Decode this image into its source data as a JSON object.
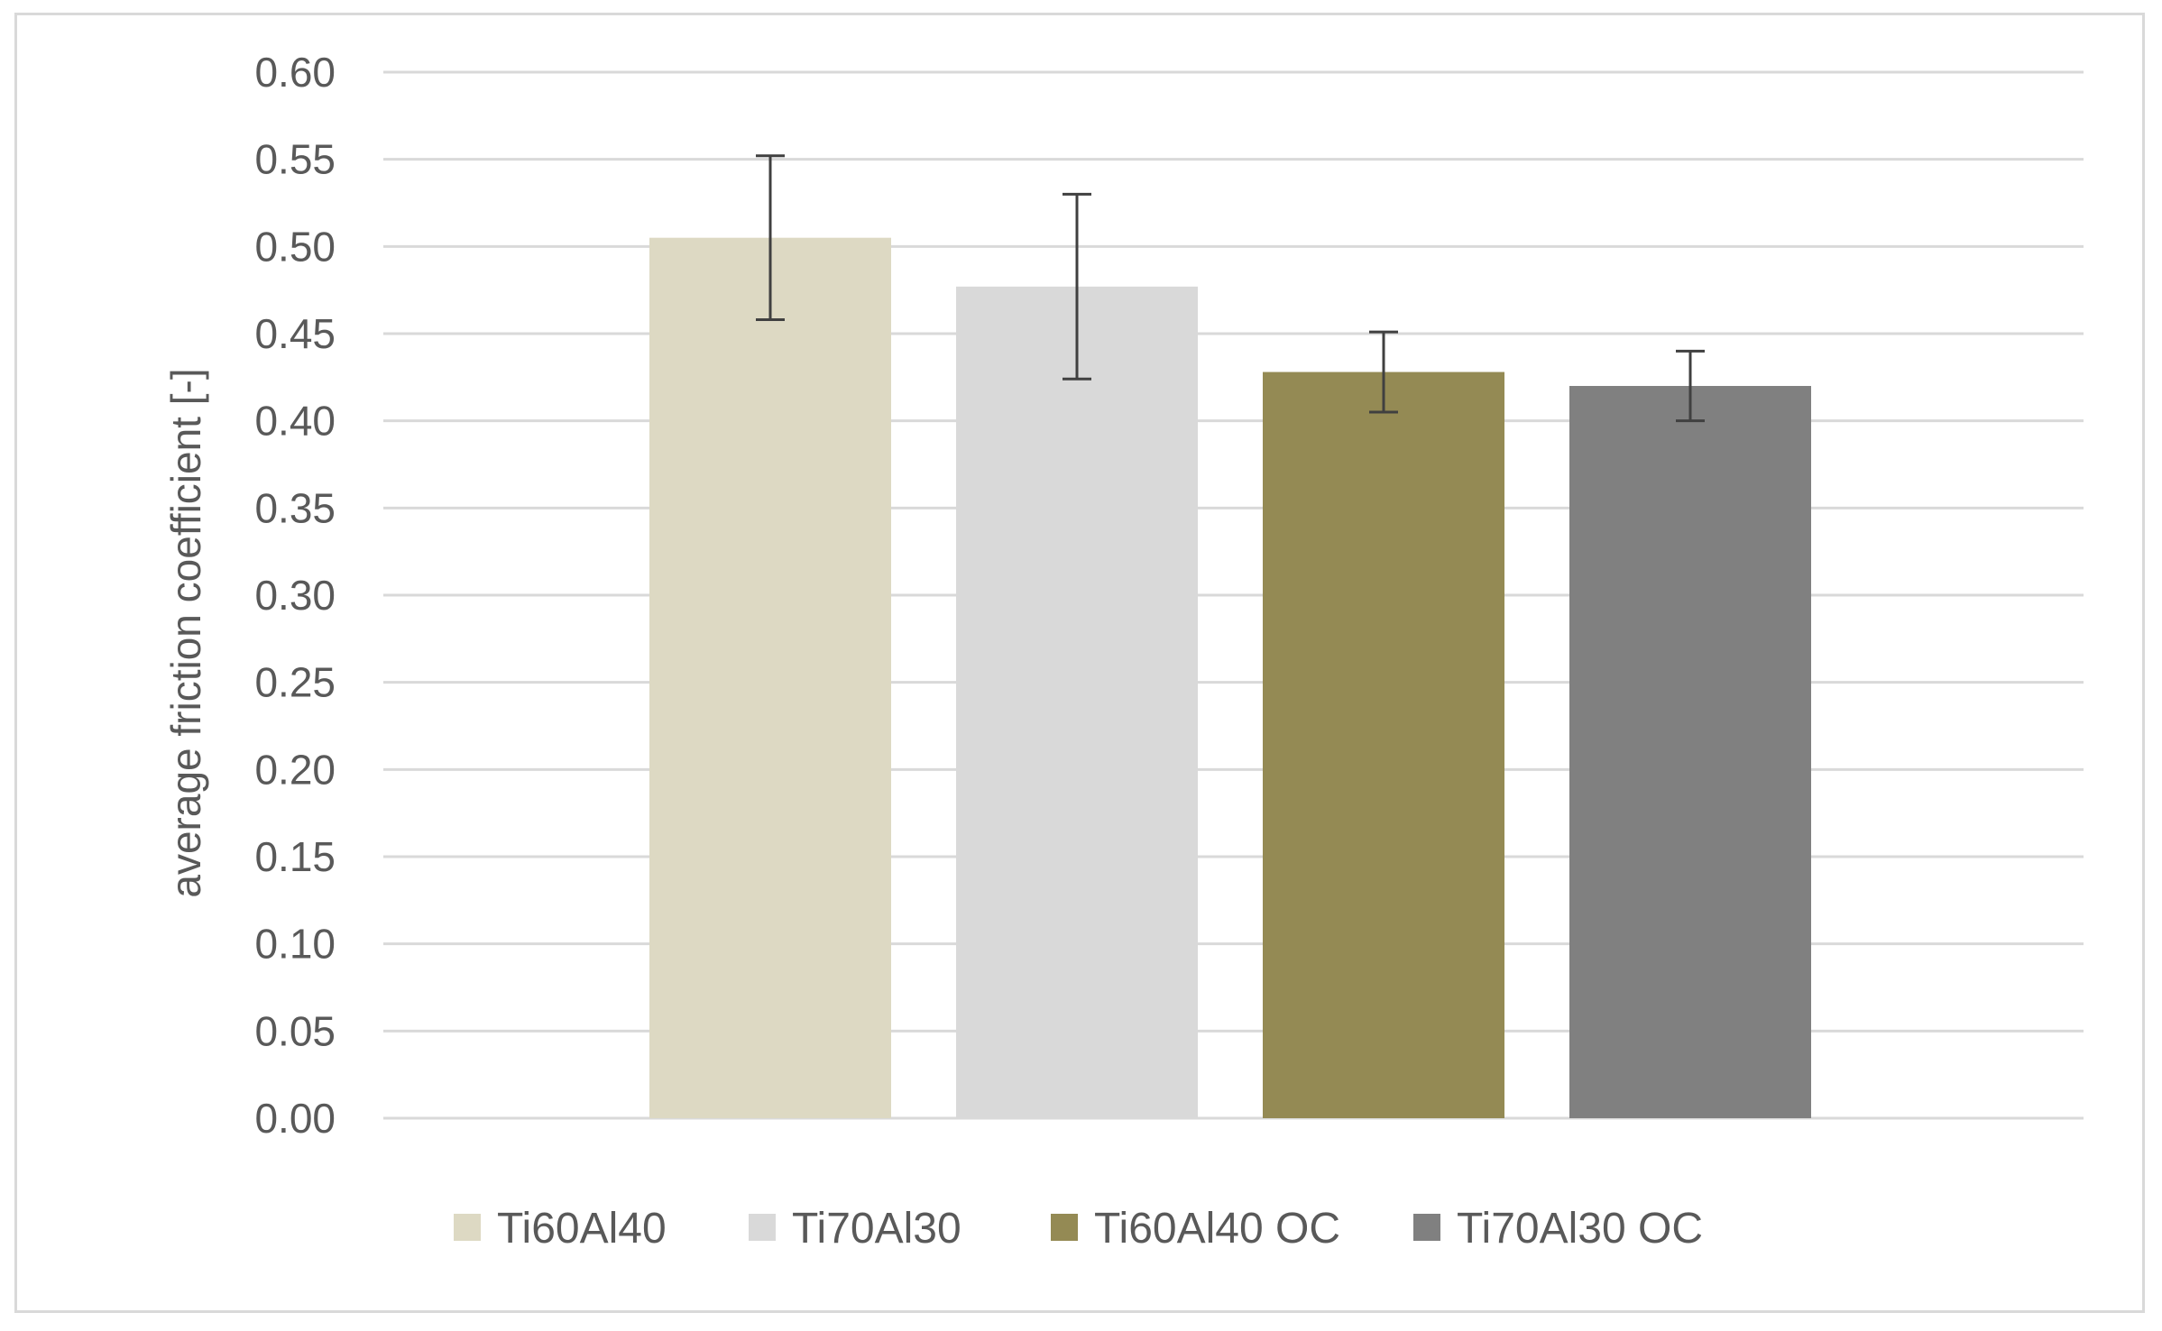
{
  "chart_data": {
    "type": "bar",
    "title": "",
    "xlabel": "",
    "ylabel": "average friction coefficient [-]",
    "ylim": [
      0,
      0.6
    ],
    "yticks": [
      "0.00",
      "0.05",
      "0.10",
      "0.15",
      "0.20",
      "0.25",
      "0.30",
      "0.35",
      "0.40",
      "0.45",
      "0.50",
      "0.55",
      "0.60"
    ],
    "grid": true,
    "legend_position": "bottom",
    "series": [
      {
        "name": "Ti60Al40",
        "value": 0.505,
        "error": 0.047,
        "color": "#ddd9c3"
      },
      {
        "name": "Ti70Al30",
        "value": 0.477,
        "error": 0.053,
        "color": "#d9d9d9"
      },
      {
        "name": "Ti60Al40 OC",
        "value": 0.428,
        "error": 0.023,
        "color": "#948a54"
      },
      {
        "name": "Ti70Al30 OC",
        "value": 0.42,
        "error": 0.02,
        "color": "#808080"
      }
    ]
  }
}
